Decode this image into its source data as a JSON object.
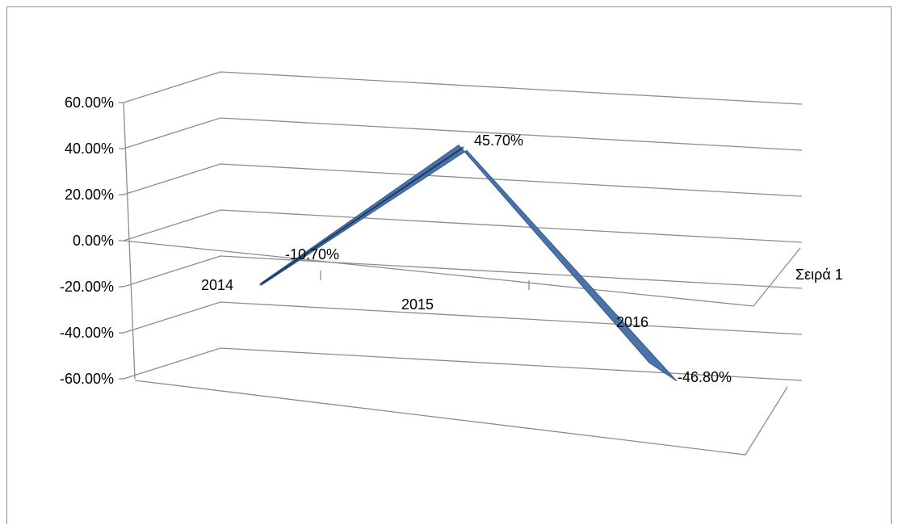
{
  "chart_data": {
    "type": "line",
    "three_d": true,
    "categories": [
      "2014",
      "2015",
      "2016"
    ],
    "series": [
      {
        "name": "Σειρά 1",
        "values": [
          -10.7,
          45.7,
          -46.8
        ],
        "color": "#4a73a8"
      }
    ],
    "data_labels": [
      "-10.70%",
      "45.70%",
      "-46.80%"
    ],
    "y_ticks": [
      "60.00%",
      "40.00%",
      "20.00%",
      "0.00%",
      "-20.00%",
      "-40.00%",
      "-60.00%"
    ],
    "y_tick_values": [
      60,
      40,
      20,
      0,
      -20,
      -40,
      -60
    ],
    "ylim": [
      -60,
      60
    ],
    "grid": true
  }
}
